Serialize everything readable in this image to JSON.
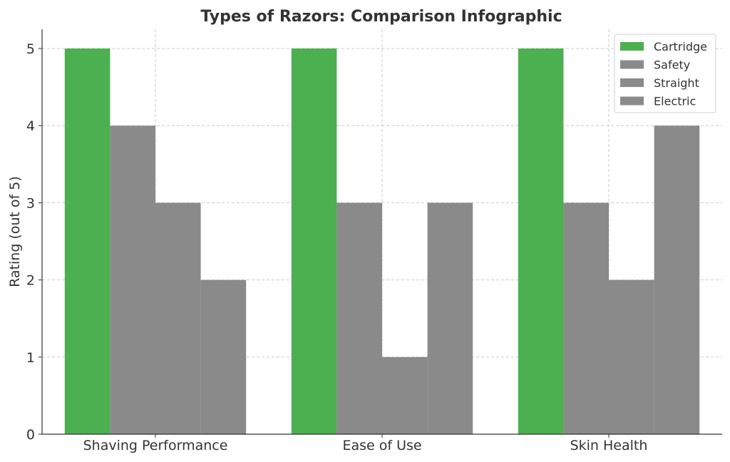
{
  "chart_data": {
    "type": "bar",
    "title": "Types of Razors: Comparison Infographic",
    "xlabel": "",
    "ylabel": "Rating (out of 5)",
    "categories": [
      "Shaving Performance",
      "Ease of Use",
      "Skin Health"
    ],
    "series": [
      {
        "name": "Cartridge",
        "values": [
          5,
          5,
          5
        ],
        "color": "#4caf50"
      },
      {
        "name": "Safety",
        "values": [
          4,
          3,
          3
        ],
        "color": "#8a8a8a"
      },
      {
        "name": "Straight",
        "values": [
          3,
          1,
          2
        ],
        "color": "#8a8a8a"
      },
      {
        "name": "Electric",
        "values": [
          2,
          3,
          4
        ],
        "color": "#8a8a8a"
      }
    ],
    "ylim": [
      0,
      5.25
    ],
    "yticks": [
      0,
      1,
      2,
      3,
      4,
      5
    ],
    "grid": true,
    "legend_position": "top-right"
  }
}
